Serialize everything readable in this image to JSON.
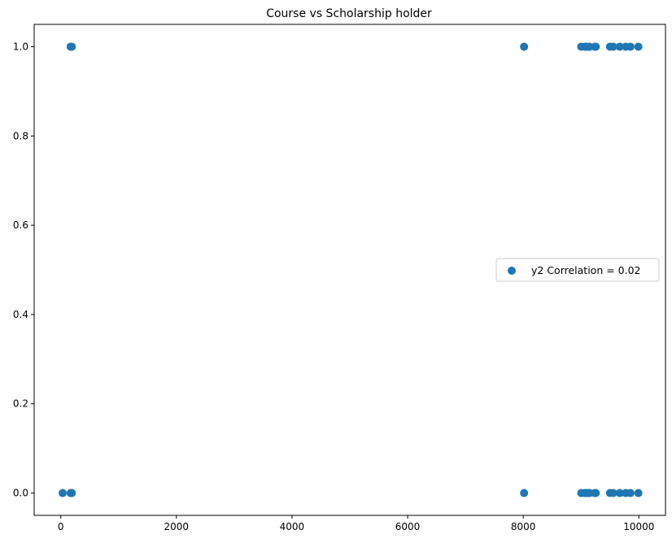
{
  "chart_data": {
    "type": "scatter",
    "title": "Course vs Scholarship holder",
    "xlabel": "",
    "ylabel": "",
    "xlim": [
      -460,
      10460
    ],
    "ylim": [
      -0.05,
      1.05
    ],
    "xticks": [
      0,
      2000,
      4000,
      6000,
      8000,
      10000
    ],
    "xtick_labels": [
      "0",
      "2000",
      "4000",
      "6000",
      "8000",
      "10000"
    ],
    "yticks": [
      0.0,
      0.2,
      0.4,
      0.6,
      0.8,
      1.0
    ],
    "ytick_labels": [
      "0.0",
      "0.2",
      "0.4",
      "0.6",
      "0.8",
      "1.0"
    ],
    "grid": false,
    "legend_position": "center-right",
    "series": [
      {
        "name": "y2 Correlation = 0.02",
        "color": "#1f77b4",
        "points": [
          [
            33,
            0
          ],
          [
            171,
            0
          ],
          [
            191,
            0
          ],
          [
            171,
            1
          ],
          [
            191,
            1
          ],
          [
            8014,
            0
          ],
          [
            8014,
            1
          ],
          [
            9003,
            0
          ],
          [
            9070,
            0
          ],
          [
            9085,
            0
          ],
          [
            9119,
            0
          ],
          [
            9130,
            0
          ],
          [
            9147,
            0
          ],
          [
            9238,
            0
          ],
          [
            9254,
            0
          ],
          [
            9500,
            0
          ],
          [
            9556,
            0
          ],
          [
            9670,
            0
          ],
          [
            9773,
            0
          ],
          [
            9853,
            0
          ],
          [
            9991,
            0
          ],
          [
            9003,
            1
          ],
          [
            9070,
            1
          ],
          [
            9085,
            1
          ],
          [
            9119,
            1
          ],
          [
            9130,
            1
          ],
          [
            9147,
            1
          ],
          [
            9238,
            1
          ],
          [
            9254,
            1
          ],
          [
            9500,
            1
          ],
          [
            9556,
            1
          ],
          [
            9670,
            1
          ],
          [
            9773,
            1
          ],
          [
            9853,
            1
          ],
          [
            9991,
            1
          ]
        ]
      }
    ]
  }
}
